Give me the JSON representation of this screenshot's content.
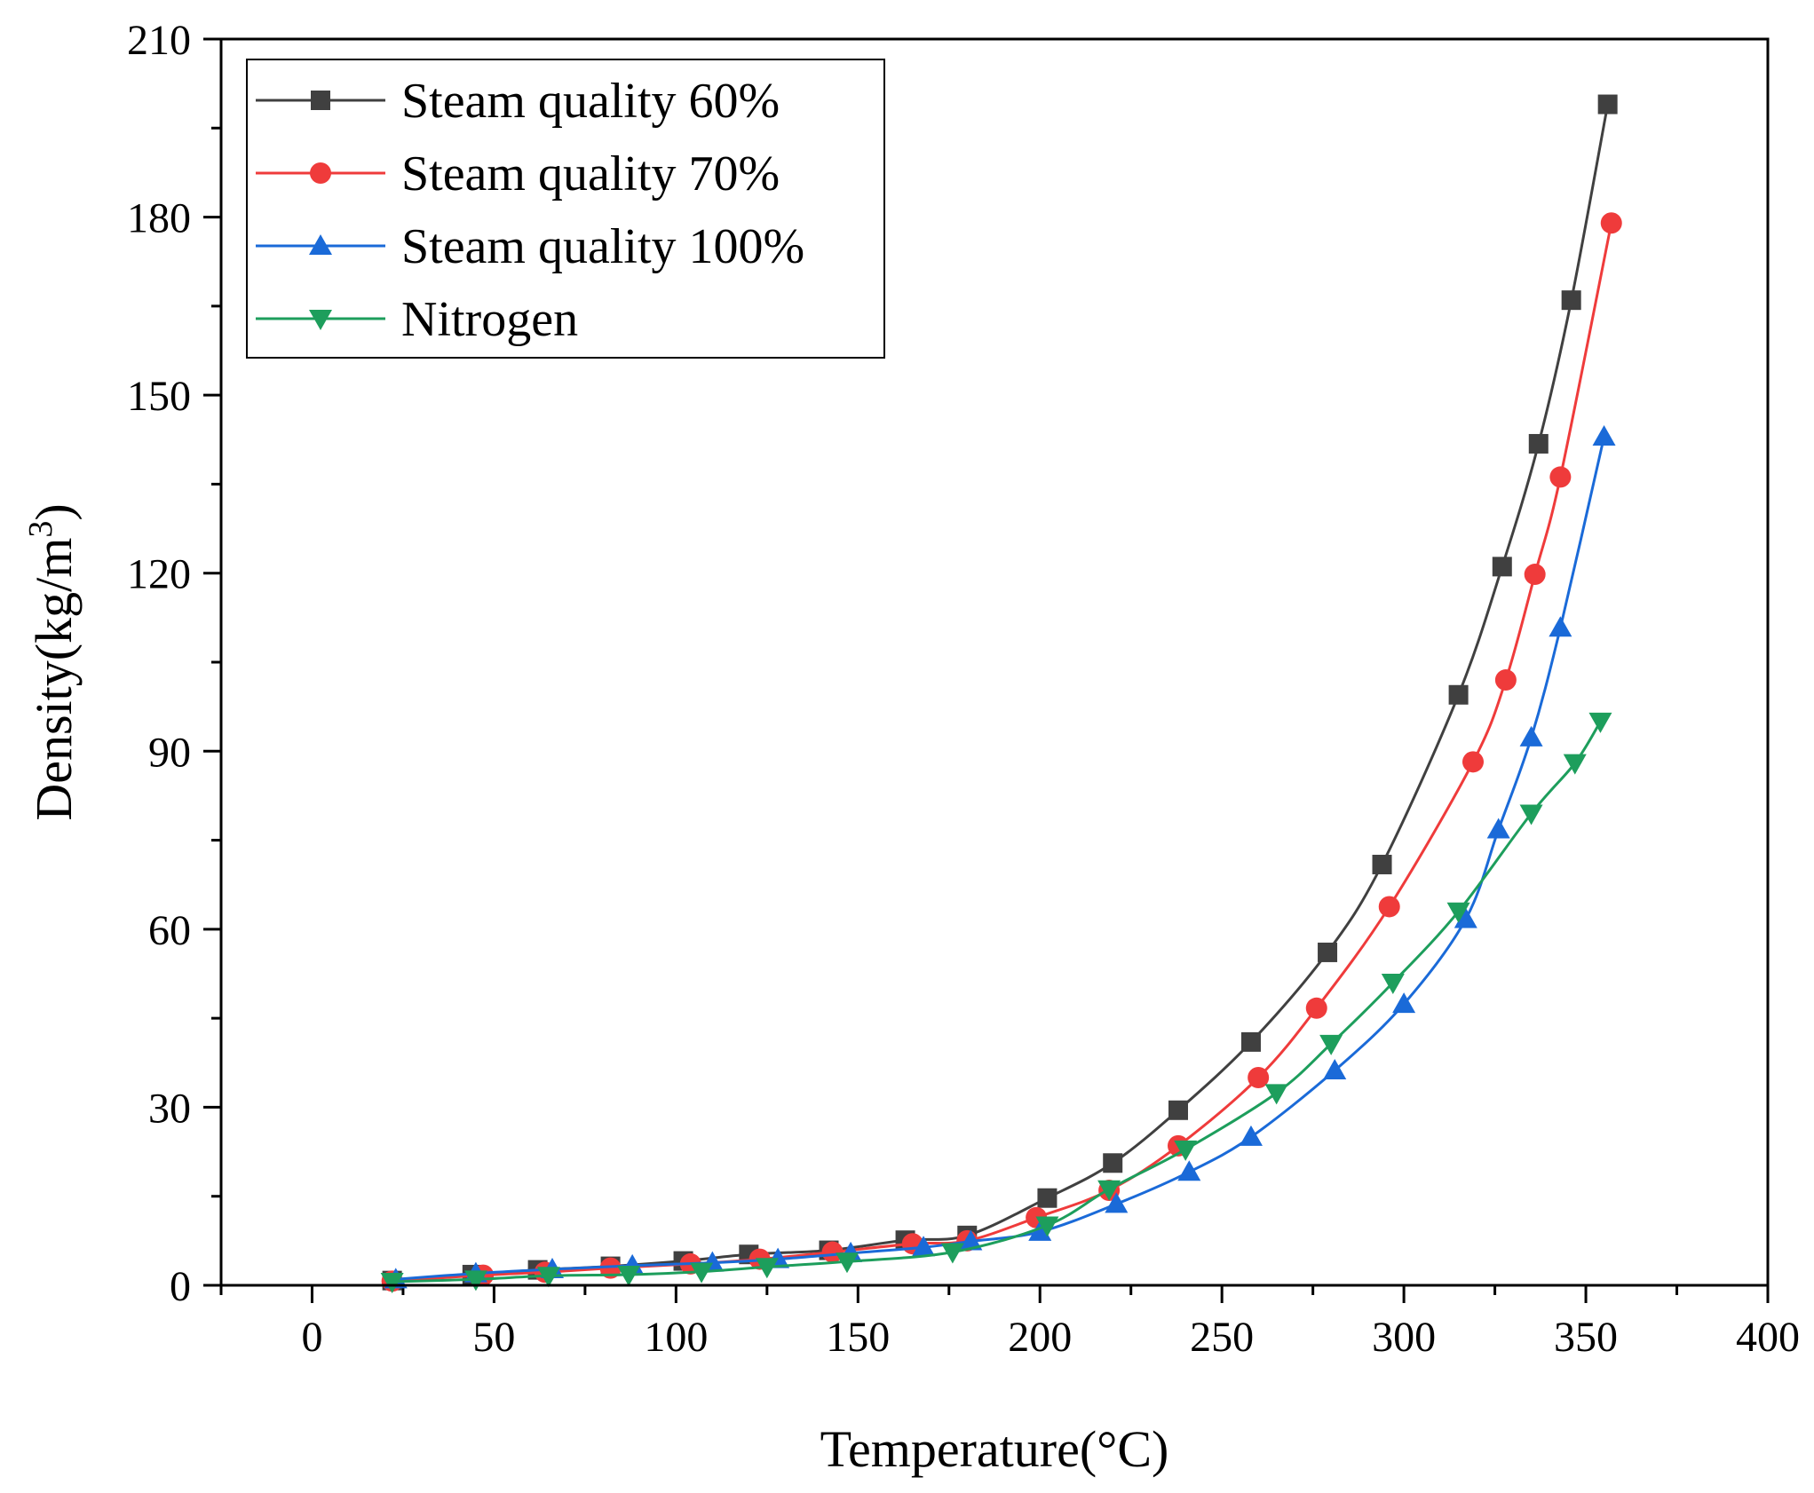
{
  "chart_data": {
    "type": "line",
    "title": "",
    "xlabel": "Temperature(°C)",
    "ylabel_main": "Density(kg/m",
    "ylabel_sup": "3",
    "ylabel_close": ")",
    "xlim": [
      -25,
      400
    ],
    "ylim": [
      0,
      210
    ],
    "xticks": [
      0,
      50,
      100,
      150,
      200,
      250,
      300,
      350,
      400
    ],
    "yticks": [
      0,
      30,
      60,
      90,
      120,
      150,
      180,
      210
    ],
    "xtick_labels": [
      "0",
      "50",
      "100",
      "150",
      "200",
      "250",
      "300",
      "350",
      "400"
    ],
    "ytick_labels": [
      "0",
      "30",
      "60",
      "90",
      "120",
      "150",
      "180",
      "210"
    ],
    "legend_position": "top-left",
    "series": [
      {
        "name": "Steam quality 60%",
        "color": "#404040",
        "marker": "square",
        "x": [
          22,
          44,
          62,
          82,
          102,
          120,
          142,
          163,
          180,
          202,
          220,
          238,
          258,
          279,
          294,
          315,
          327,
          337,
          346,
          356
        ],
        "y": [
          0.8,
          1.8,
          2.6,
          3.2,
          4.1,
          5.2,
          5.9,
          7.6,
          8.4,
          14.7,
          20.6,
          29.5,
          41.0,
          56.1,
          70.9,
          99.5,
          121.1,
          141.8,
          166.0,
          199.0
        ]
      },
      {
        "name": "Steam quality 70%",
        "color": "#ef3b3b",
        "marker": "circle",
        "x": [
          22,
          47,
          64,
          82,
          104,
          123,
          143,
          165,
          180,
          199,
          219,
          238,
          260,
          276,
          296,
          319,
          328,
          336,
          343,
          357
        ],
        "y": [
          0.7,
          1.7,
          2.2,
          2.9,
          3.6,
          4.4,
          5.6,
          7.0,
          7.5,
          11.4,
          16.0,
          23.5,
          35.0,
          46.7,
          63.8,
          88.2,
          102.0,
          119.8,
          136.2,
          179.0
        ]
      },
      {
        "name": "Steam quality 100%",
        "color": "#1a6ad8",
        "marker": "triangle-up",
        "x": [
          23,
          45,
          66,
          88,
          110,
          128,
          148,
          168,
          181,
          200,
          221,
          241,
          258,
          281,
          300,
          317,
          326,
          335,
          343,
          355
        ],
        "y": [
          1.0,
          2.0,
          2.7,
          3.3,
          3.8,
          4.4,
          5.4,
          6.4,
          7.4,
          9.0,
          13.7,
          19.1,
          25.0,
          36.2,
          47.4,
          61.7,
          76.8,
          92.3,
          110.8,
          143.0
        ]
      },
      {
        "name": "Nitrogen",
        "color": "#1d9e5c",
        "marker": "triangle-down",
        "x": [
          22,
          45,
          65,
          87,
          107,
          125,
          147,
          176,
          202,
          219,
          240,
          265,
          280,
          297,
          315,
          335,
          347,
          354
        ],
        "y": [
          0.6,
          1.0,
          1.6,
          1.8,
          2.3,
          3.1,
          4.0,
          5.6,
          10.1,
          16.2,
          22.9,
          32.4,
          40.7,
          51.0,
          63.0,
          79.5,
          88.0,
          95.0
        ]
      }
    ]
  }
}
